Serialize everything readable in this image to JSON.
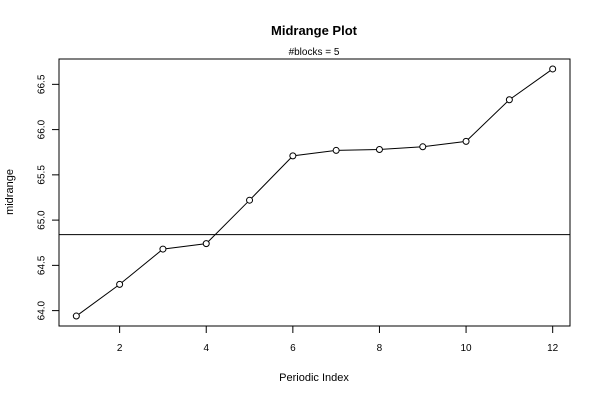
{
  "chart_data": {
    "type": "line",
    "title": "Midrange Plot",
    "subtitle": "#blocks =  5",
    "xlabel": "Periodic Index",
    "ylabel": "midrange",
    "x": [
      1,
      2,
      3,
      4,
      5,
      6,
      7,
      8,
      9,
      10,
      11,
      12
    ],
    "series": [
      {
        "values": [
          63.94,
          64.29,
          64.68,
          64.74,
          65.22,
          65.71,
          65.77,
          65.78,
          65.81,
          65.87,
          66.33,
          66.67
        ]
      }
    ],
    "reference_line_y": 64.84,
    "xlim": [
      0.6,
      12.4
    ],
    "ylim": [
      63.83,
      66.78
    ],
    "x_ticks": [
      2,
      4,
      6,
      8,
      10,
      12
    ],
    "y_ticks": [
      64.0,
      64.5,
      65.0,
      65.5,
      66.0,
      66.5
    ],
    "x_tick_labels": [
      "2",
      "4",
      "6",
      "8",
      "10",
      "12"
    ],
    "y_tick_labels": [
      "64.0",
      "64.5",
      "65.0",
      "65.5",
      "66.0",
      "66.5"
    ],
    "marker": "open-circle",
    "grid": false,
    "legend": "none",
    "colors": {
      "line": "#000000",
      "reference_line": "#000000",
      "background": "#ffffff"
    }
  }
}
